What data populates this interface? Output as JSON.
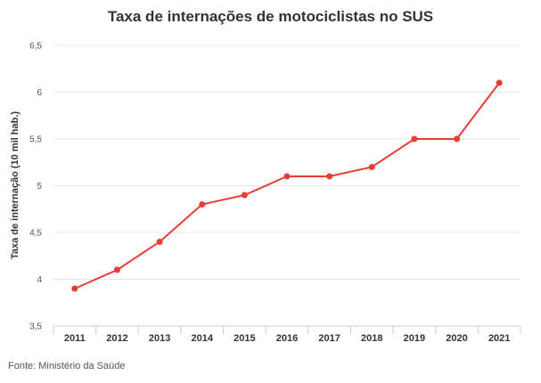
{
  "chart_data": {
    "type": "line",
    "title": "Taxa de internações de motociclistas no SUS",
    "ylabel": "Taxa de internação (10 mil hab.)",
    "xlabel": "",
    "categories": [
      "2011",
      "2012",
      "2013",
      "2014",
      "2015",
      "2016",
      "2017",
      "2018",
      "2019",
      "2020",
      "2021"
    ],
    "values": [
      3.9,
      4.1,
      4.4,
      4.8,
      4.9,
      5.1,
      5.1,
      5.2,
      5.5,
      5.5,
      6.1
    ],
    "ylim": [
      3.5,
      6.5
    ],
    "yticks": [
      3.5,
      4,
      4.5,
      5,
      5.5,
      6,
      6.5
    ],
    "ytick_labels": [
      "3,5",
      "4",
      "4,5",
      "5",
      "5,5",
      "6",
      "6,5"
    ],
    "grid": true,
    "line_color": "#e53e36"
  },
  "source": "Fonte: Ministério da Saúde"
}
